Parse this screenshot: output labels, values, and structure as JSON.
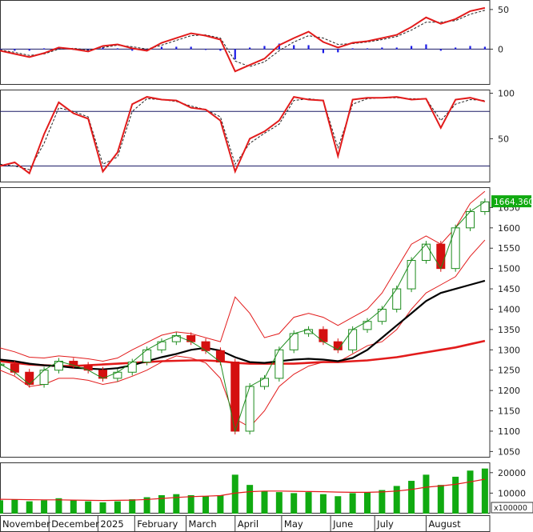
{
  "chart_data": [
    {
      "type": "line",
      "panel": "macd",
      "y_ticks": [
        "50",
        "0"
      ],
      "y_tick_values": [
        50,
        0
      ],
      "ylim": [
        -45,
        62
      ],
      "series": [],
      "x": [
        0,
        6,
        12,
        18,
        24,
        30,
        36,
        42,
        48,
        54,
        60,
        66,
        72,
        78,
        84,
        90,
        96,
        102,
        108,
        114,
        120,
        126,
        132,
        138,
        144,
        150,
        156,
        162,
        168,
        174,
        180,
        186,
        192,
        198
      ],
      "macd": [
        -2,
        -6,
        -10,
        -5,
        2,
        0,
        -3,
        4,
        6,
        1,
        -2,
        8,
        14,
        20,
        17,
        12,
        -28,
        -20,
        -12,
        5,
        14,
        22,
        9,
        2,
        8,
        10,
        14,
        18,
        28,
        40,
        32,
        38,
        48,
        52
      ],
      "signal": [
        -1,
        -4,
        -8,
        -6,
        0,
        1,
        -1,
        2,
        5,
        3,
        0,
        5,
        11,
        17,
        18,
        14,
        -15,
        -22,
        -16,
        -2,
        9,
        17,
        14,
        6,
        7,
        9,
        12,
        16,
        24,
        34,
        34,
        36,
        44,
        49
      ],
      "histogram": [
        -1,
        -2,
        -2,
        1,
        2,
        -1,
        -2,
        2,
        1,
        -2,
        -2,
        3,
        3,
        3,
        -1,
        -2,
        -13,
        2,
        4,
        7,
        5,
        5,
        -5,
        -4,
        1,
        1,
        2,
        2,
        4,
        6,
        -2,
        2,
        4,
        3
      ]
    },
    {
      "type": "line",
      "panel": "stochastic",
      "y_ticks": [
        "100",
        "50"
      ],
      "y_tick_values": [
        100,
        50
      ],
      "ylim": [
        2,
        104
      ],
      "reference_lines": [
        80,
        20
      ],
      "series": [],
      "x": [
        0,
        6,
        12,
        18,
        24,
        30,
        36,
        42,
        48,
        54,
        60,
        66,
        72,
        78,
        84,
        90,
        96,
        102,
        108,
        114,
        120,
        126,
        132,
        138,
        144,
        150,
        156,
        162,
        168,
        174,
        180,
        186,
        192,
        198
      ],
      "k": [
        20,
        24,
        12,
        55,
        90,
        78,
        72,
        14,
        35,
        88,
        96,
        93,
        92,
        84,
        82,
        70,
        14,
        50,
        58,
        70,
        96,
        93,
        92,
        31,
        93,
        95,
        95,
        96,
        93,
        94,
        62,
        93,
        95,
        91
      ],
      "d": [
        22,
        20,
        16,
        45,
        84,
        80,
        74,
        22,
        30,
        80,
        94,
        93,
        91,
        86,
        82,
        74,
        22,
        45,
        56,
        66,
        92,
        94,
        92,
        40,
        88,
        94,
        95,
        95,
        94,
        94,
        70,
        88,
        93,
        92
      ]
    },
    {
      "type": "line",
      "panel": "price",
      "y_ticks": [
        "1650",
        "1600",
        "1550",
        "1500",
        "1450",
        "1400",
        "1350",
        "1300",
        "1250",
        "1200",
        "1150",
        "1100",
        "1050"
      ],
      "y_tick_values": [
        1650,
        1600,
        1550,
        1500,
        1450,
        1400,
        1350,
        1300,
        1250,
        1200,
        1150,
        1100,
        1050
      ],
      "ylim": [
        1035,
        1700
      ],
      "last_price_label": "1664.360",
      "last_price": 1664.36,
      "series": [],
      "x": [
        0,
        6,
        12,
        18,
        24,
        30,
        36,
        42,
        48,
        54,
        60,
        66,
        72,
        78,
        84,
        90,
        96,
        102,
        108,
        114,
        120,
        126,
        132,
        138,
        144,
        150,
        156,
        162,
        168,
        174,
        180,
        186,
        192,
        198
      ],
      "close": [
        1265,
        1245,
        1215,
        1250,
        1272,
        1262,
        1250,
        1230,
        1245,
        1270,
        1300,
        1320,
        1335,
        1320,
        1298,
        1270,
        1100,
        1210,
        1230,
        1300,
        1340,
        1350,
        1320,
        1300,
        1350,
        1370,
        1400,
        1450,
        1520,
        1560,
        1500,
        1600,
        1640,
        1664
      ],
      "ma_long": [
        1272,
        1268,
        1264,
        1262,
        1260,
        1260,
        1262,
        1264,
        1266,
        1268,
        1270,
        1272,
        1273,
        1274,
        1274,
        1272,
        1268,
        1266,
        1266,
        1266,
        1266,
        1268,
        1270,
        1270,
        1272,
        1274,
        1278,
        1282,
        1288,
        1294,
        1300,
        1306,
        1314,
        1322
      ],
      "ma_mid": [
        1276,
        1272,
        1266,
        1262,
        1260,
        1256,
        1254,
        1252,
        1255,
        1262,
        1272,
        1282,
        1290,
        1300,
        1305,
        1298,
        1282,
        1270,
        1268,
        1272,
        1276,
        1278,
        1276,
        1272,
        1280,
        1300,
        1330,
        1360,
        1390,
        1420,
        1440,
        1450,
        1460,
        1470
      ],
      "bb_upper": [
        1305,
        1295,
        1282,
        1280,
        1285,
        1282,
        1278,
        1272,
        1280,
        1300,
        1318,
        1336,
        1344,
        1340,
        1330,
        1320,
        1430,
        1390,
        1330,
        1340,
        1380,
        1390,
        1380,
        1360,
        1380,
        1400,
        1440,
        1500,
        1560,
        1580,
        1560,
        1600,
        1660,
        1690
      ],
      "bb_lower": [
        1250,
        1235,
        1210,
        1215,
        1230,
        1230,
        1225,
        1215,
        1222,
        1235,
        1250,
        1270,
        1285,
        1280,
        1268,
        1230,
        1130,
        1110,
        1150,
        1210,
        1240,
        1260,
        1270,
        1270,
        1290,
        1310,
        1320,
        1350,
        1400,
        1440,
        1460,
        1480,
        1530,
        1570
      ]
    },
    {
      "type": "bar",
      "panel": "volume",
      "y_ticks": [
        "20000",
        "10000"
      ],
      "y_tick_values": [
        20000,
        10000
      ],
      "ylim": [
        0,
        25000
      ],
      "axis_unit": "x100000",
      "series": [],
      "x": [
        0,
        6,
        12,
        18,
        24,
        30,
        36,
        42,
        48,
        54,
        60,
        66,
        72,
        78,
        84,
        90,
        96,
        102,
        108,
        114,
        120,
        126,
        132,
        138,
        144,
        150,
        156,
        162,
        168,
        174,
        180,
        186,
        192,
        198
      ],
      "values": [
        6500,
        7000,
        6000,
        6500,
        7500,
        6500,
        6000,
        5500,
        6000,
        7000,
        8000,
        9000,
        9500,
        9000,
        8500,
        9000,
        19000,
        14000,
        11000,
        10500,
        10000,
        10500,
        9500,
        8500,
        10000,
        10500,
        11500,
        13500,
        16000,
        19000,
        14000,
        18000,
        21000,
        22000
      ],
      "volume_ma": [
        7000,
        6900,
        6800,
        6700,
        6700,
        6600,
        6500,
        6400,
        6500,
        6600,
        6900,
        7400,
        7900,
        8300,
        8500,
        8800,
        10000,
        10700,
        11000,
        11000,
        10900,
        10800,
        10700,
        10500,
        10400,
        10400,
        10600,
        11000,
        11800,
        12900,
        13500,
        14300,
        15500,
        16800
      ]
    }
  ],
  "x_axis": {
    "months": [
      "November",
      "December",
      "2025",
      "February",
      "March",
      "April",
      "May",
      "June",
      "July",
      "August"
    ],
    "month_x": [
      0,
      20,
      40,
      55,
      76,
      96,
      115,
      135,
      153,
      174
    ],
    "xlim": [
      0,
      200
    ]
  },
  "colors": {
    "price_up": "#1e8c1e",
    "price_down": "#d41010",
    "red_line": "#e21b1b",
    "black_line": "#000000",
    "signal_dashed": "#222222",
    "histogram": "#1a1ae6",
    "volume_bars": "#11aa11",
    "last_price_bg": "#11aa11",
    "last_price_text": "#ffffff",
    "ref_lines": "#1a1a66",
    "grid_border": "#333333"
  }
}
